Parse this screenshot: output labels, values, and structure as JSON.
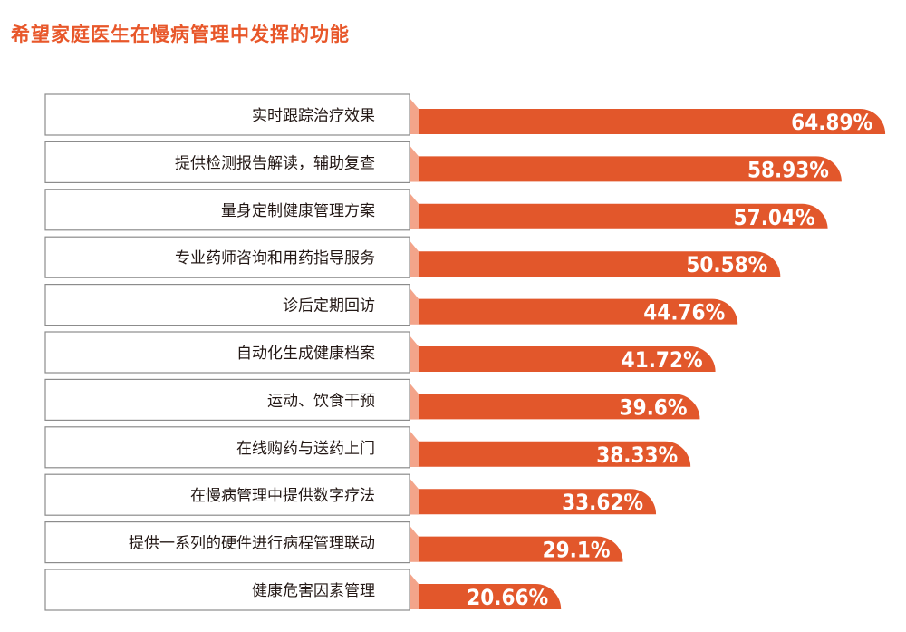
{
  "chart_data": {
    "type": "bar",
    "orientation": "horizontal",
    "title": "希望家庭医生在慢病管理中发挥的功能",
    "categories": [
      "实时跟踪治疗效果",
      "提供检测报告解读，辅助复查",
      "量身定制健康管理方案",
      "专业药师咨询和用药指导服务",
      "诊后定期回访",
      "自动化生成健康档案",
      "运动、饮食干预",
      "在线购药与送药上门",
      "在慢病管理中提供数字疗法",
      "提供一系列的硬件进行病程管理联动",
      "健康危害因素管理"
    ],
    "values": [
      64.89,
      58.93,
      57.04,
      50.58,
      44.76,
      41.72,
      39.6,
      38.33,
      33.62,
      29.1,
      20.66
    ],
    "value_labels": [
      "64.89%",
      "58.93%",
      "57.04%",
      "50.58%",
      "44.76%",
      "41.72%",
      "39.6%",
      "38.33%",
      "33.62%",
      "29.1%",
      "20.66%"
    ],
    "unit": "%",
    "grid": false,
    "legend": "none",
    "colors": {
      "bar": "#e2572b",
      "bar_stub": "#f3a48a",
      "box_border": "#8c8c8c",
      "title": "#e8572a",
      "value_text": "#ffffff",
      "label_text": "#231815"
    }
  }
}
